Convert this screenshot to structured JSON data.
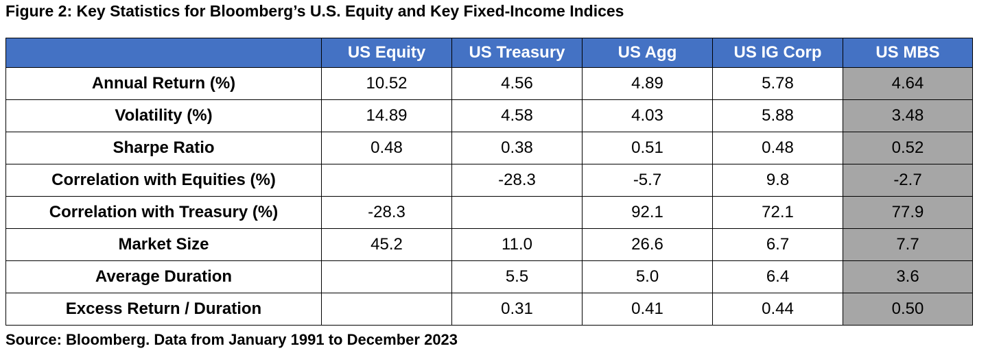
{
  "title": "Figure 2: Key Statistics for Bloomberg’s U.S. Equity and Key Fixed-Income Indices",
  "columns": [
    "US Equity",
    "US Treasury",
    "US Agg",
    "US IG Corp",
    "US MBS"
  ],
  "rows": [
    {
      "label": "Annual Return (%)",
      "values": [
        "10.52",
        "4.56",
        "4.89",
        "5.78",
        "4.64"
      ]
    },
    {
      "label": "Volatility (%)",
      "values": [
        "14.89",
        "4.58",
        "4.03",
        "5.88",
        "3.48"
      ]
    },
    {
      "label": "Sharpe Ratio",
      "values": [
        "0.48",
        "0.38",
        "0.51",
        "0.48",
        "0.52"
      ]
    },
    {
      "label": "Correlation with Equities (%)",
      "values": [
        "",
        "-28.3",
        "-5.7",
        "9.8",
        "-2.7"
      ]
    },
    {
      "label": "Correlation with Treasury (%)",
      "values": [
        "-28.3",
        "",
        "92.1",
        "72.1",
        "77.9"
      ]
    },
    {
      "label": "Market Size",
      "values": [
        "45.2",
        "11.0",
        "26.6",
        "6.7",
        "7.7"
      ]
    },
    {
      "label": "Average Duration",
      "values": [
        "",
        "5.5",
        "5.0",
        "6.4",
        "3.6"
      ]
    },
    {
      "label": "Excess Return / Duration",
      "values": [
        "",
        "0.31",
        "0.41",
        "0.44",
        "0.50"
      ]
    }
  ],
  "source": "Source: Bloomberg. Data from January 1991 to December 2023",
  "colors": {
    "header_bg": "#4472c4",
    "header_text": "#ffffff",
    "highlight_bg": "#a6a6a6"
  }
}
